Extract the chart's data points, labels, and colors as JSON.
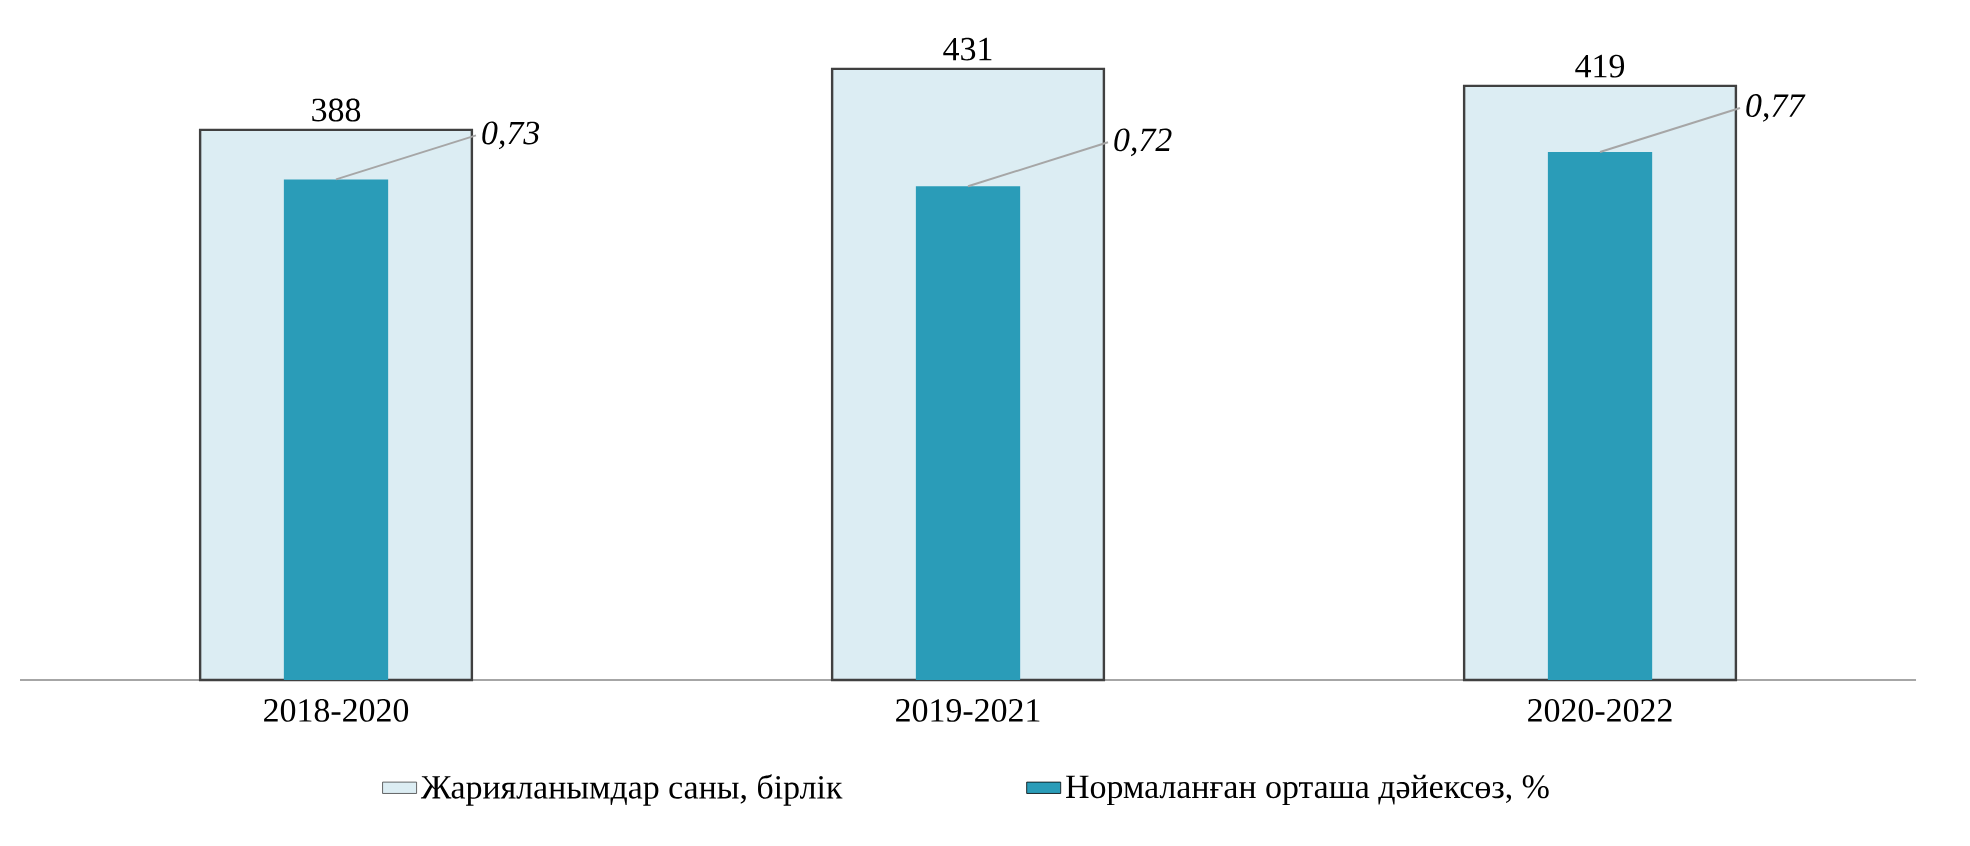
{
  "chart_data": {
    "type": "bar",
    "categories": [
      "2018-2020",
      "2019-2021",
      "2020-2022"
    ],
    "series": [
      {
        "name": "Жарияланымдар саны, бірлік",
        "color": "#dcedf3",
        "values": [
          388,
          431,
          419
        ],
        "value_labels": [
          "388",
          "431",
          "419"
        ]
      },
      {
        "name": "Нормаланған орташа дәйексөз, %",
        "color": "#2a9cb8",
        "values": [
          0.73,
          0.72,
          0.77
        ],
        "value_labels": [
          "0,73",
          "0,72",
          "0,77"
        ],
        "axis": "y2"
      }
    ],
    "tick_labels": "x",
    "legend": "bottom"
  }
}
